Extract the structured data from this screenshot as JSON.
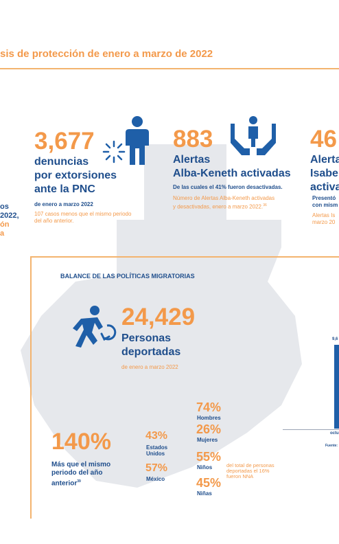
{
  "header": {
    "title": "sis de protección de enero a marzo de 2022"
  },
  "left_fragment": {
    "lines": [
      "os",
      "2022,",
      "ón",
      "a"
    ]
  },
  "denuncias": {
    "number": "3,677",
    "label_line1": "denuncias",
    "label_line2": "por extorsiones",
    "label_line3": "ante la PNC",
    "period": "de enero a marzo 2022",
    "note_line1": "107 casos menos que el mismo periodo",
    "note_line2": "del año anterior."
  },
  "alertas": {
    "number": "883",
    "label_line1": "Alertas",
    "label_line2": "Alba-Keneth activadas",
    "sub": "De las cuales el 41% fueron desactivadas.",
    "note_line1": "Número de Alertas Alba-Keneth activadas",
    "note_line2": "y desactivadas, enero a marzo 2022.",
    "note_ref": "36"
  },
  "isabel": {
    "number": "46",
    "label_line1": "Alerta",
    "label_line2": "Isabe",
    "label_line3": "activa",
    "sub_line1": "Presentó",
    "sub_line2": "con mism",
    "note_line1": "Alertas Is",
    "note_line2": "marzo 20"
  },
  "balance": {
    "heading": "BALANCE DE LAS POLÍTICAS MIGRATORIAS",
    "number": "24,429",
    "label_line1": "Personas",
    "label_line2": "deportadas",
    "period": "de enero a marzo 2022"
  },
  "increase": {
    "number": "140%",
    "label_line1": "Más que el mismo",
    "label_line2": "periodo del año",
    "label_line3": "anterior",
    "ref": "39"
  },
  "origin": {
    "usa_pct": "43%",
    "usa_label1": "Estados",
    "usa_label2": "Unidos",
    "mex_pct": "57%",
    "mex_label": "México"
  },
  "demographics": {
    "hombres_pct": "74%",
    "hombres_label": "Hombres",
    "mujeres_pct": "26%",
    "mujeres_label": "Mujeres",
    "ninos_pct": "55%",
    "ninos_label": "Niños",
    "ninas_pct": "45%",
    "ninas_label": "Niñas",
    "nna_note_line1": "del total de personas",
    "nna_note_line2": "deportadas el 16%",
    "nna_note_line3": "fueron NNA"
  },
  "chart_fragment": {
    "value_label": "9,6",
    "axis_label": "octu",
    "source": "Fuente:",
    "bar_color": "#1f5fa8"
  },
  "colors": {
    "accent": "#f3994a",
    "primary": "#1f4e8c",
    "map": "#e4e6ea"
  }
}
